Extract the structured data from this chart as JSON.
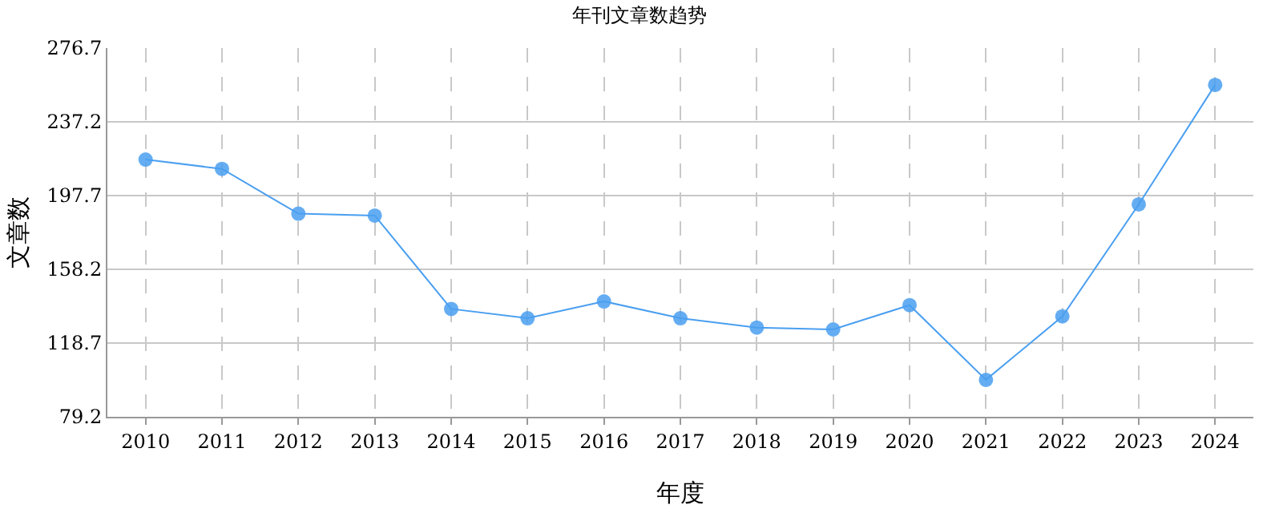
{
  "chart_data": {
    "type": "line",
    "title": "年刊文章数趋势",
    "xlabel": "年度",
    "ylabel": "文章数",
    "categories": [
      "2010",
      "2011",
      "2012",
      "2013",
      "2014",
      "2015",
      "2016",
      "2017",
      "2018",
      "2019",
      "2020",
      "2021",
      "2022",
      "2023",
      "2024"
    ],
    "series": [
      {
        "color": "#4a9ff0",
        "values": [
          217,
          212,
          188,
          187,
          137,
          132,
          141,
          132,
          127,
          126,
          139,
          99,
          133,
          193,
          257
        ]
      }
    ],
    "ylim": [
      79.2,
      276.7
    ],
    "yticks": [
      79.2,
      118.7,
      158.2,
      197.7,
      237.2,
      276.7
    ],
    "grid": true,
    "marker": "circle",
    "line_style": "solid",
    "legend": false
  }
}
